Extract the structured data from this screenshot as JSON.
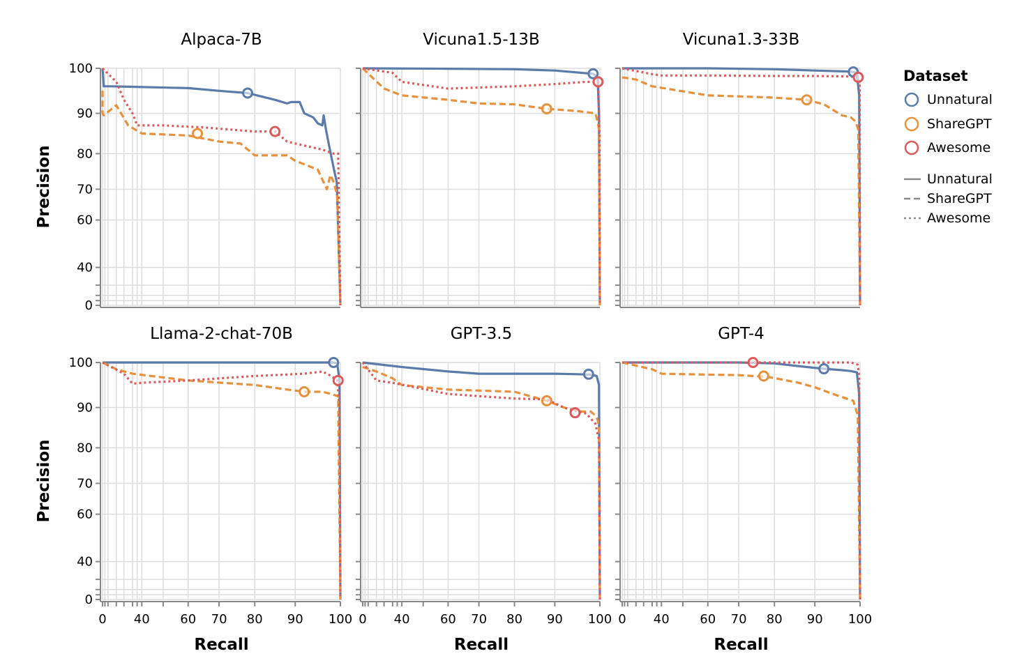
{
  "figure": {
    "y_axis_title": "Precision",
    "x_axis_title": "Recall"
  },
  "legend": {
    "title": "Dataset",
    "color_entries": [
      {
        "label": "Unnatural",
        "color": "#5b7bab"
      },
      {
        "label": "ShareGPT",
        "color": "#e8913d"
      },
      {
        "label": "Awesome",
        "color": "#d95c5c"
      }
    ],
    "dash_entries": [
      {
        "label": "Unnatural",
        "dash": "solid"
      },
      {
        "label": "ShareGPT",
        "dash": "dashed"
      },
      {
        "label": "Awesome",
        "dash": "dotted"
      }
    ],
    "swatch_color": "#8a8a8a"
  },
  "chart_data": {
    "type": "line",
    "x_scale": "nonlinear (stretched toward 100)",
    "y_scale": "nonlinear (stretched toward 100)",
    "xlim": [
      0,
      100
    ],
    "ylim": [
      0,
      100
    ],
    "x_ticks": [
      0,
      40,
      60,
      70,
      80,
      90,
      100
    ],
    "y_ticks": [
      0,
      40,
      60,
      70,
      80,
      90,
      100
    ],
    "x_gridlines": [
      0,
      1,
      2,
      5,
      10,
      20,
      30,
      40,
      50,
      60,
      70,
      80,
      90,
      100
    ],
    "y_gridlines": [
      0,
      5,
      10,
      20,
      40,
      60,
      70,
      80,
      90,
      100
    ],
    "panels": [
      {
        "title": "Alpaca-7B",
        "series": [
          {
            "name": "Unnatural",
            "style": "solid",
            "x": [
              0,
              0.5,
              3,
              20,
              60,
              70,
              78,
              85,
              88,
              89,
              91,
              92,
              94,
              95,
              96,
              96.3,
              96.8,
              97.5,
              98.5,
              99.2,
              100
            ],
            "y": [
              100,
              96,
              96,
              95.9,
              95.6,
              95,
              94.5,
              93,
              92.2,
              92.5,
              92.5,
              90,
              89,
              87.5,
              87,
              89.5,
              86,
              82,
              76,
              72,
              0
            ],
            "marker": {
              "x": 78,
              "y": 94.5
            }
          },
          {
            "name": "ShareGPT",
            "style": "dashed",
            "x": [
              0,
              0,
              0.5,
              5,
              15,
              40,
              60,
              70,
              76,
              80,
              84,
              88,
              90,
              95,
              97,
              97.8,
              98.5,
              99.3,
              100
            ],
            "y": [
              95,
              90,
              89.5,
              91.8,
              87,
              85,
              84.5,
              83,
              82.5,
              79.5,
              79.5,
              79.5,
              78,
              75.5,
              70,
              74,
              72,
              68,
              0
            ],
            "marker": {
              "x": 63,
              "y": 85
            }
          },
          {
            "name": "Awesome",
            "style": "dotted",
            "x": [
              0,
              5,
              10,
              20,
              30,
              50,
              65,
              80,
              85,
              88,
              92,
              96,
              98.5,
              99.5,
              100
            ],
            "y": [
              100,
              97,
              93,
              90,
              87,
              87,
              86.5,
              85.5,
              85.5,
              83,
              82,
              81,
              80,
              80,
              0
            ],
            "marker": {
              "x": 85,
              "y": 85.5
            }
          }
        ]
      },
      {
        "title": "Vicuna1.5-13B",
        "series": [
          {
            "name": "Unnatural",
            "style": "solid",
            "x": [
              0,
              60,
              80,
              90,
              96,
              98.5,
              99.5,
              99.8,
              100
            ],
            "y": [
              100,
              99.9,
              99.8,
              99.5,
              99,
              98.8,
              98,
              90,
              0
            ],
            "marker": {
              "x": 98.5,
              "y": 98.8
            }
          },
          {
            "name": "ShareGPT",
            "style": "dashed",
            "x": [
              0,
              10,
              40,
              60,
              70,
              80,
              88,
              95,
              99,
              99.5,
              99.8,
              100
            ],
            "y": [
              100,
              95.5,
              94,
              93,
              92.2,
              92,
              91,
              90.5,
              90,
              88,
              86,
              0
            ],
            "marker": {
              "x": 88,
              "y": 91
            }
          },
          {
            "name": "Awesome",
            "style": "dotted",
            "x": [
              0,
              20,
              40,
              60,
              80,
              90,
              97,
              99,
              99.6,
              99.9,
              100
            ],
            "y": [
              100,
              99,
              97,
              95.5,
              96,
              96.5,
              97,
              97,
              97,
              85,
              0
            ],
            "marker": {
              "x": 99.6,
              "y": 97
            }
          }
        ]
      },
      {
        "title": "Vicuna1.3-33B",
        "series": [
          {
            "name": "Unnatural",
            "style": "solid",
            "x": [
              0,
              60,
              80,
              90,
              97,
              98.5,
              99.3,
              99.8,
              100
            ],
            "y": [
              100,
              100,
              99.8,
              99.5,
              99.3,
              99.2,
              99,
              94,
              0
            ],
            "marker": {
              "x": 98.5,
              "y": 99.2
            }
          },
          {
            "name": "ShareGPT",
            "style": "dashed",
            "x": [
              0,
              5,
              20,
              60,
              80,
              88,
              92,
              96,
              98,
              99,
              99.6,
              100
            ],
            "y": [
              98,
              97.5,
              96,
              94,
              93.5,
              93,
              92,
              89.5,
              89,
              88,
              86,
              0
            ],
            "marker": {
              "x": 88,
              "y": 93
            }
          },
          {
            "name": "Awesome",
            "style": "dotted",
            "x": [
              0,
              20,
              40,
              60,
              80,
              90,
              97,
              99,
              99.6,
              99.9,
              100
            ],
            "y": [
              100,
              98.7,
              98.4,
              98.4,
              98.3,
              98.3,
              98.2,
              98.1,
              98,
              96,
              0
            ],
            "marker": {
              "x": 99.6,
              "y": 98
            }
          }
        ]
      },
      {
        "title": "Llama-2-chat-70B",
        "series": [
          {
            "name": "Unnatural",
            "style": "solid",
            "x": [
              0,
              60,
              80,
              90,
              95,
              98.5,
              99.3,
              99.8,
              100
            ],
            "y": [
              100,
              100,
              100,
              100,
              100,
              100,
              99.8,
              96,
              0
            ],
            "marker": {
              "x": 98.5,
              "y": 100
            }
          },
          {
            "name": "ShareGPT",
            "style": "dashed",
            "x": [
              0,
              5,
              20,
              60,
              80,
              88,
              92,
              96,
              98,
              99.5,
              100
            ],
            "y": [
              100,
              98.5,
              97.5,
              96,
              95,
              94,
              93.5,
              93.5,
              93,
              92.5,
              0
            ],
            "marker": {
              "x": 92,
              "y": 93.5
            }
          },
          {
            "name": "Awesome",
            "style": "dotted",
            "x": [
              0,
              10,
              20,
              40,
              60,
              80,
              92,
              96,
              98,
              99.3,
              99.8,
              100
            ],
            "y": [
              100,
              97.5,
              95.3,
              95.5,
              96,
              97,
              97.5,
              98,
              97,
              96,
              90,
              0
            ],
            "marker": {
              "x": 99.5,
              "y": 96
            }
          }
        ]
      },
      {
        "title": "GPT-3.5",
        "series": [
          {
            "name": "Unnatural",
            "style": "solid",
            "x": [
              0,
              40,
              60,
              70,
              80,
              90,
              95,
              98,
              99.3,
              99.8,
              100
            ],
            "y": [
              100,
              99,
              98,
              97.5,
              97.5,
              97.5,
              97.4,
              97.3,
              97,
              95,
              0
            ],
            "marker": {
              "x": 97.5,
              "y": 97.4
            }
          },
          {
            "name": "ShareGPT",
            "style": "dashed",
            "x": [
              0,
              5,
              20,
              40,
              60,
              80,
              88,
              92,
              96,
              98,
              99,
              99.5,
              99.8,
              100
            ],
            "y": [
              99,
              98,
              96.5,
              95,
              94,
              93.5,
              91.5,
              90,
              89,
              89,
              88,
              87,
              85,
              0
            ],
            "marker": {
              "x": 88,
              "y": 91.5
            }
          },
          {
            "name": "Awesome",
            "style": "dotted",
            "x": [
              0,
              5,
              20,
              60,
              80,
              88,
              92,
              95,
              97,
              99,
              99.8,
              100
            ],
            "y": [
              100,
              96,
              95.5,
              93,
              92,
              91.8,
              90,
              89,
              88.5,
              86,
              82,
              0
            ],
            "marker": {
              "x": 94.5,
              "y": 88.7
            }
          }
        ]
      },
      {
        "title": "GPT-4",
        "series": [
          {
            "name": "Unnatural",
            "style": "solid",
            "x": [
              0,
              40,
              60,
              70,
              80,
              88,
              92,
              96,
              98,
              99.3,
              99.8,
              100
            ],
            "y": [
              100,
              100,
              100,
              100,
              99.8,
              99,
              98.6,
              98.3,
              98.1,
              97.8,
              93,
              0
            ],
            "marker": {
              "x": 92,
              "y": 98.6
            }
          },
          {
            "name": "ShareGPT",
            "style": "dashed",
            "x": [
              0,
              20,
              40,
              60,
              70,
              78,
              82,
              86,
              90,
              94,
              97,
              98.5,
              99.5,
              100
            ],
            "y": [
              100,
              98.5,
              97.5,
              97.3,
              97.2,
              96.8,
              96.2,
              95.5,
              94.5,
              93,
              92,
              91.5,
              88,
              0
            ],
            "marker": {
              "x": 77,
              "y": 97
            }
          },
          {
            "name": "Awesome",
            "style": "dotted",
            "x": [
              0,
              40,
              70,
              80,
              90,
              96,
              98,
              99.5,
              99.8,
              100
            ],
            "y": [
              100,
              100,
              100,
              100,
              100,
              100,
              100,
              99.5,
              97,
              0
            ],
            "marker": {
              "x": 74,
              "y": 100
            }
          }
        ]
      }
    ]
  }
}
